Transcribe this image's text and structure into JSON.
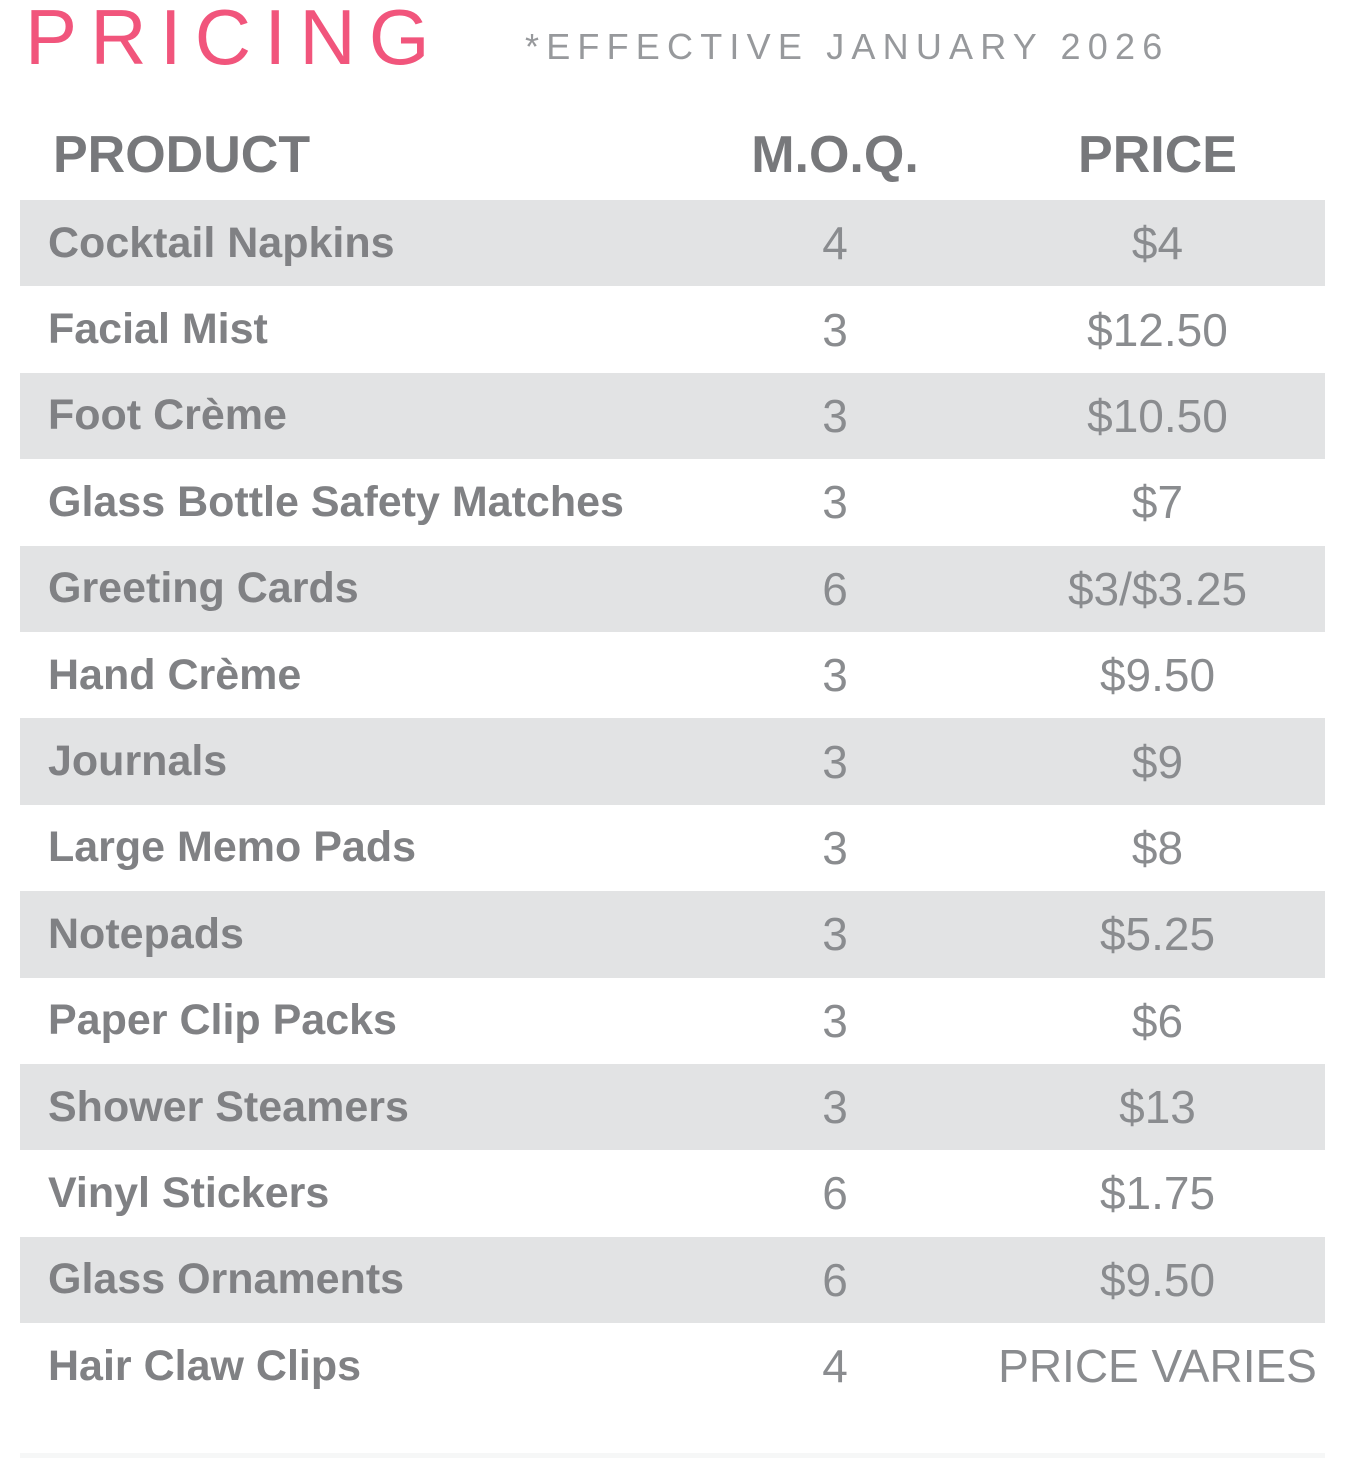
{
  "page": {
    "title": "PRICING",
    "subtitle": "*EFFECTIVE JANUARY 2026",
    "accent_color": "#F1557C",
    "stripe_color": "#E2E3E4",
    "product_text_color": "#808184",
    "value_text_color": "#8A8C8F",
    "subtitle_color": "#97999C"
  },
  "table": {
    "columns": [
      "PRODUCT",
      "M.O.Q.",
      "PRICE"
    ],
    "rows": [
      {
        "product": "Cocktail Napkins",
        "moq": "4",
        "price": "$4"
      },
      {
        "product": "Facial Mist",
        "moq": "3",
        "price": "$12.50"
      },
      {
        "product": "Foot Crème",
        "moq": "3",
        "price": "$10.50"
      },
      {
        "product": "Glass Bottle Safety Matches",
        "moq": "3",
        "price": "$7"
      },
      {
        "product": "Greeting Cards",
        "moq": "6",
        "price": "$3/$3.25"
      },
      {
        "product": "Hand Crème",
        "moq": "3",
        "price": "$9.50"
      },
      {
        "product": "Journals",
        "moq": "3",
        "price": "$9"
      },
      {
        "product": "Large Memo Pads",
        "moq": "3",
        "price": "$8"
      },
      {
        "product": "Notepads",
        "moq": "3",
        "price": "$5.25"
      },
      {
        "product": "Paper Clip Packs",
        "moq": "3",
        "price": "$6"
      },
      {
        "product": "Shower Steamers",
        "moq": "3",
        "price": "$13"
      },
      {
        "product": "Vinyl Stickers",
        "moq": "6",
        "price": "$1.75"
      },
      {
        "product": "Glass Ornaments",
        "moq": "6",
        "price": "$9.50"
      },
      {
        "product": "Hair Claw Clips",
        "moq": "4",
        "price": "PRICE VARIES"
      }
    ]
  }
}
